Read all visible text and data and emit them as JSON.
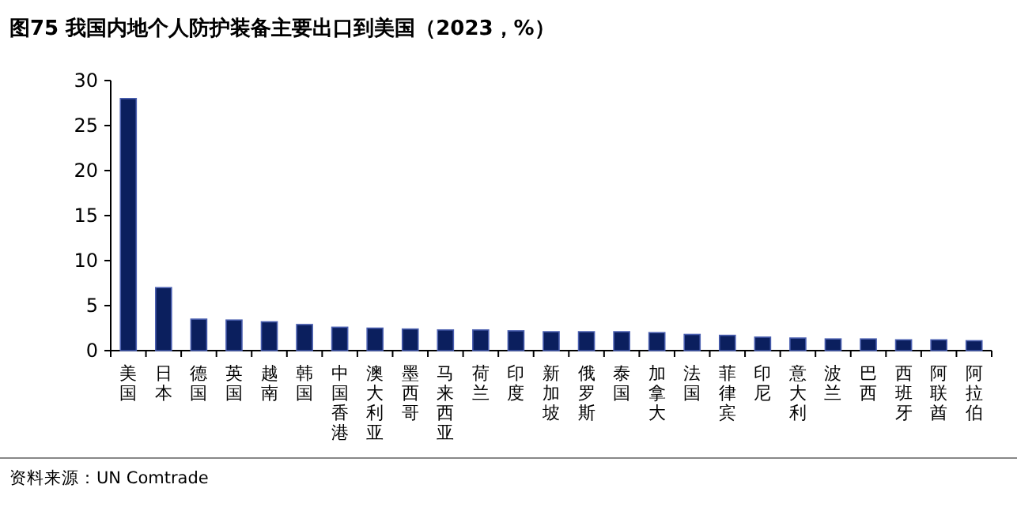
{
  "chart_data": {
    "type": "bar",
    "title": "图75 我国内地个人防护装备主要出口到美国（2023，%）",
    "categories": [
      "美国",
      "日本",
      "德国",
      "英国",
      "越南",
      "韩国",
      "中国香港",
      "澳大利亚",
      "墨西哥",
      "马来西亚",
      "荷兰",
      "印度",
      "新加坡",
      "俄罗斯",
      "泰国",
      "加拿大",
      "法国",
      "菲律宾",
      "印尼",
      "意大利",
      "波兰",
      "巴西",
      "西班牙",
      "阿联酋",
      "阿拉伯"
    ],
    "values": [
      28,
      7,
      3.5,
      3.4,
      3.2,
      2.9,
      2.6,
      2.5,
      2.4,
      2.3,
      2.3,
      2.2,
      2.1,
      2.1,
      2.1,
      2.0,
      1.8,
      1.7,
      1.5,
      1.4,
      1.3,
      1.3,
      1.2,
      1.2,
      1.1
    ],
    "color": "#0b1f5e",
    "ylim": [
      0,
      30
    ],
    "yticks": [
      0,
      5,
      10,
      15,
      20,
      25,
      30
    ],
    "annotations": [
      "资料来源：UN Comtrade"
    ]
  }
}
